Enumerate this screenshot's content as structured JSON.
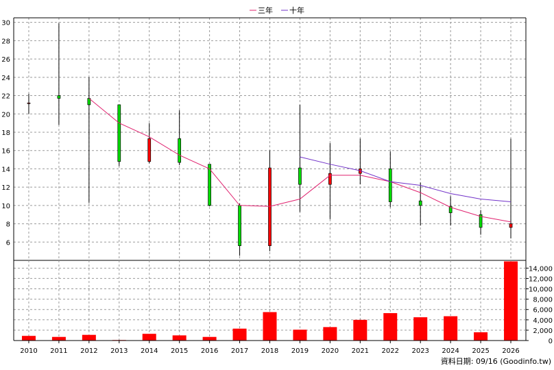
{
  "legend": [
    {
      "label": "三年",
      "color": "#e0206e"
    },
    {
      "label": "十年",
      "color": "#7030c8"
    }
  ],
  "footer": "資料日期: 09/16  (Goodinfo.tw)",
  "chart_data": [
    {
      "type": "candlestick",
      "x_categories": [
        "2010",
        "2011",
        "2012",
        "2013",
        "2014",
        "2015",
        "2016",
        "2017",
        "2018",
        "2019",
        "2020",
        "2021",
        "2022",
        "2023",
        "2024",
        "2025",
        "2026"
      ],
      "ylim": [
        4,
        30.5
      ],
      "y_ticks": [
        6,
        8,
        10,
        12,
        14,
        16,
        18,
        20,
        22,
        24,
        26,
        28,
        30
      ],
      "grid": true,
      "legend_position": "top-center",
      "up_color": "#ff0000",
      "down_color": "#00dd00",
      "candles": [
        {
          "year": "2010",
          "open": 21.2,
          "close": 21.2,
          "high": 22.2,
          "low": 20.0
        },
        {
          "year": "2011",
          "open": 22.0,
          "close": 21.7,
          "high": 29.9,
          "low": 18.8
        },
        {
          "year": "2012",
          "open": 21.7,
          "close": 21.0,
          "high": 24.0,
          "low": 10.3
        },
        {
          "year": "2013",
          "open": 21.0,
          "close": 14.8,
          "high": 21.0,
          "low": 14.3
        },
        {
          "year": "2014",
          "open": 14.8,
          "close": 17.3,
          "high": 19.0,
          "low": 14.6
        },
        {
          "year": "2015",
          "open": 17.3,
          "close": 14.7,
          "high": 20.4,
          "low": 14.4
        },
        {
          "year": "2016",
          "open": 14.5,
          "close": 10.0,
          "high": 14.5,
          "low": 9.9
        },
        {
          "year": "2017",
          "open": 10.0,
          "close": 5.6,
          "high": 10.2,
          "low": 4.5
        },
        {
          "year": "2018",
          "open": 5.6,
          "close": 14.1,
          "high": 16.0,
          "low": 5.0
        },
        {
          "year": "2019",
          "open": 14.1,
          "close": 12.3,
          "high": 21.0,
          "low": 9.3
        },
        {
          "year": "2020",
          "open": 12.3,
          "close": 13.5,
          "high": 16.8,
          "low": 8.5
        },
        {
          "year": "2021",
          "open": 13.5,
          "close": 14.0,
          "high": 17.3,
          "low": 12.3
        },
        {
          "year": "2022",
          "open": 14.0,
          "close": 10.4,
          "high": 15.9,
          "low": 9.8
        },
        {
          "year": "2023",
          "open": 10.5,
          "close": 10.0,
          "high": 12.5,
          "low": 7.8
        },
        {
          "year": "2024",
          "open": 9.9,
          "close": 9.2,
          "high": 11.0,
          "low": 7.8
        },
        {
          "year": "2025",
          "open": 9.0,
          "close": 7.6,
          "high": 9.5,
          "low": 6.8
        },
        {
          "year": "2026",
          "open": 7.6,
          "close": 8.0,
          "high": 17.3,
          "low": 6.4
        }
      ],
      "series": [
        {
          "name": "三年",
          "color": "#e0206e",
          "points": [
            [
              "2012",
              21.7
            ],
            [
              "2013",
              19.0
            ],
            [
              "2014",
              17.5
            ],
            [
              "2015",
              15.5
            ],
            [
              "2016",
              14.0
            ],
            [
              "2017",
              10.0
            ],
            [
              "2018",
              9.9
            ],
            [
              "2019",
              10.7
            ],
            [
              "2020",
              13.3
            ],
            [
              "2021",
              13.3
            ],
            [
              "2022",
              12.6
            ],
            [
              "2023",
              11.4
            ],
            [
              "2024",
              9.8
            ],
            [
              "2025",
              8.8
            ],
            [
              "2026",
              8.2
            ]
          ]
        },
        {
          "name": "十年",
          "color": "#7030c8",
          "points": [
            [
              "2019",
              15.3
            ],
            [
              "2020",
              14.5
            ],
            [
              "2021",
              13.8
            ],
            [
              "2022",
              12.6
            ],
            [
              "2023",
              12.2
            ],
            [
              "2024",
              11.3
            ],
            [
              "2025",
              10.7
            ],
            [
              "2026",
              10.4
            ]
          ]
        }
      ]
    },
    {
      "type": "bar",
      "x_categories": [
        "2010",
        "2011",
        "2012",
        "2013",
        "2014",
        "2015",
        "2016",
        "2017",
        "2018",
        "2019",
        "2020",
        "2021",
        "2022",
        "2023",
        "2024",
        "2025",
        "2026"
      ],
      "values": [
        900,
        700,
        1100,
        100,
        1300,
        1000,
        700,
        2300,
        5500,
        2100,
        2600,
        4000,
        5300,
        4500,
        4700,
        1600,
        15300
      ],
      "ylim": [
        0,
        15500
      ],
      "y_ticks": [
        0,
        2000,
        4000,
        6000,
        8000,
        10000,
        12000,
        14000
      ],
      "y_tick_labels": [
        "0",
        "2,000",
        "4,000",
        "6,000",
        "8,000",
        "10,000",
        "12,000",
        "14,000"
      ],
      "bar_color": "#ff0000",
      "grid": true
    }
  ]
}
